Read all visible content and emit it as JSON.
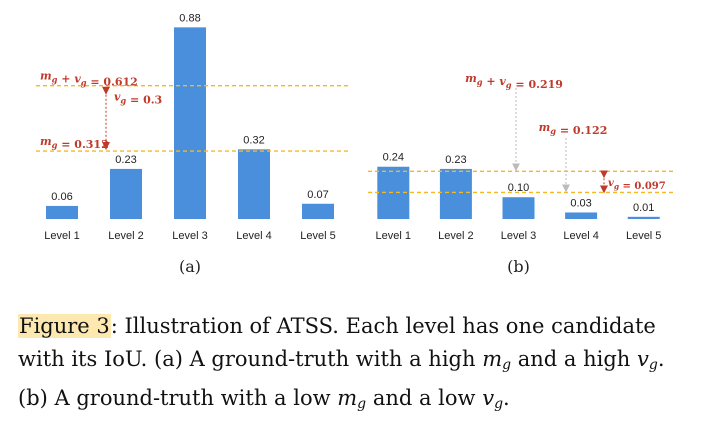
{
  "chart_data": [
    {
      "type": "bar",
      "panel_label": "(a)",
      "categories": [
        "Level 1",
        "Level 2",
        "Level 3",
        "Level 4",
        "Level 5"
      ],
      "values": [
        0.06,
        0.23,
        0.88,
        0.32,
        0.07
      ],
      "value_labels": [
        "0.06",
        "0.23",
        "0.88",
        "0.32",
        "0.07"
      ],
      "ylim": [
        0,
        0.9
      ],
      "reference_lines": [
        {
          "value": 0.612,
          "label": "m_g + v_g = 0.612"
        },
        {
          "value": 0.312,
          "label": "m_g = 0.312"
        }
      ],
      "annotations": [
        {
          "text": "v_g = 0.3"
        }
      ]
    },
    {
      "type": "bar",
      "panel_label": "(b)",
      "categories": [
        "Level 1",
        "Level 2",
        "Level 3",
        "Level 4",
        "Level 5"
      ],
      "values": [
        0.24,
        0.23,
        0.1,
        0.03,
        0.01
      ],
      "value_labels": [
        "0.24",
        "0.23",
        "0.10",
        "0.03",
        "0.01"
      ],
      "ylim": [
        0,
        0.9
      ],
      "reference_lines": [
        {
          "value": 0.219,
          "label": ""
        },
        {
          "value": 0.122,
          "label": ""
        }
      ],
      "annotations": [
        {
          "text": "m_g + v_g = 0.219"
        },
        {
          "text": "m_g = 0.122"
        },
        {
          "text": "v_g = 0.097"
        }
      ]
    }
  ],
  "colors": {
    "bar": "#4a8fdc",
    "threshold_line": "#f5b820",
    "annotation": "#c0392b",
    "arrow": "#bbbbbb"
  },
  "caption": {
    "figure_ref": "Figure 3",
    "text_1": ": Illustration of ATSS. Each level has one candidate with its IoU. (a) A ground-truth with a high ",
    "text_2": " and a high ",
    "text_3": ". (b) A ground-truth with a low ",
    "text_4": " and a low ",
    "text_5": ".",
    "m": "m",
    "v": "v",
    "g": "g"
  }
}
